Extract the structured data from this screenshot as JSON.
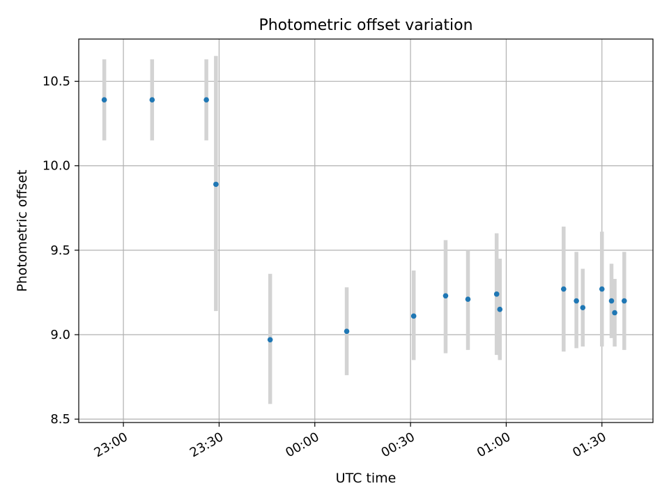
{
  "chart_data": {
    "type": "scatter",
    "title": "Photometric offset variation",
    "xlabel": "UTC time",
    "ylabel": "Photometric offset",
    "x_axis_type": "time",
    "xlim": [
      "22:46",
      "01:46"
    ],
    "ylim": [
      8.48,
      10.75
    ],
    "x_ticks": [
      "23:00",
      "23:30",
      "00:00",
      "00:30",
      "01:00",
      "01:30"
    ],
    "y_ticks": [
      "8.5",
      "9.0",
      "9.5",
      "10.0",
      "10.5"
    ],
    "grid": true,
    "legend": "none",
    "colors": {
      "point": "#1f77b4",
      "errorbar": "#d3d3d3"
    },
    "points": [
      {
        "x": "22:54",
        "y": 10.39,
        "err_low": 10.15,
        "err_high": 10.63
      },
      {
        "x": "23:09",
        "y": 10.39,
        "err_low": 10.15,
        "err_high": 10.63
      },
      {
        "x": "23:26",
        "y": 10.39,
        "err_low": 10.15,
        "err_high": 10.63
      },
      {
        "x": "23:29",
        "y": 9.89,
        "err_low": 9.14,
        "err_high": 10.65
      },
      {
        "x": "23:46",
        "y": 8.97,
        "err_low": 8.59,
        "err_high": 9.36
      },
      {
        "x": "00:10",
        "y": 9.02,
        "err_low": 8.76,
        "err_high": 9.28
      },
      {
        "x": "00:31",
        "y": 9.11,
        "err_low": 8.85,
        "err_high": 9.38
      },
      {
        "x": "00:41",
        "y": 9.23,
        "err_low": 8.89,
        "err_high": 9.56
      },
      {
        "x": "00:48",
        "y": 9.21,
        "err_low": 8.91,
        "err_high": 9.5
      },
      {
        "x": "00:57",
        "y": 9.24,
        "err_low": 8.88,
        "err_high": 9.6
      },
      {
        "x": "00:58",
        "y": 9.15,
        "err_low": 8.85,
        "err_high": 9.45
      },
      {
        "x": "01:18",
        "y": 9.27,
        "err_low": 8.9,
        "err_high": 9.64
      },
      {
        "x": "01:22",
        "y": 9.2,
        "err_low": 8.92,
        "err_high": 9.49
      },
      {
        "x": "01:24",
        "y": 9.16,
        "err_low": 8.93,
        "err_high": 9.39
      },
      {
        "x": "01:30",
        "y": 9.27,
        "err_low": 8.93,
        "err_high": 9.61
      },
      {
        "x": "01:33",
        "y": 9.2,
        "err_low": 8.98,
        "err_high": 9.42
      },
      {
        "x": "01:34",
        "y": 9.13,
        "err_low": 8.93,
        "err_high": 9.33
      },
      {
        "x": "01:37",
        "y": 9.2,
        "err_low": 8.91,
        "err_high": 9.49
      }
    ]
  }
}
